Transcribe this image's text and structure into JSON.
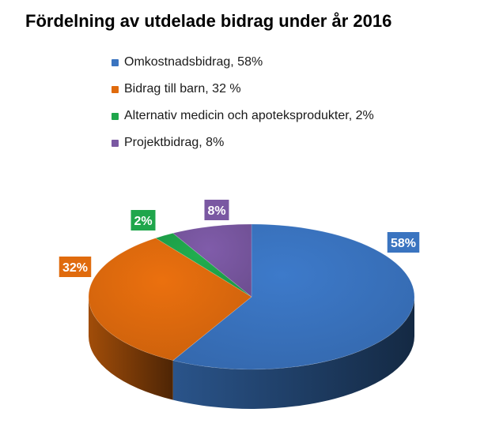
{
  "chart_data": {
    "type": "pie",
    "title": "Fördelning av utdelade bidrag under år 2016",
    "legend_position": "top",
    "series": [
      {
        "name": "Omkostnadsbidrag, 58%",
        "value": 58,
        "label": "58%",
        "color": "#3a74c0"
      },
      {
        "name": "Bidrag till barn, 32 %",
        "value": 32,
        "label": "32%",
        "color": "#e06b0d"
      },
      {
        "name": "Alternativ medicin och apoteksprodukter, 2%",
        "value": 2,
        "label": "2%",
        "color": "#1fa64b"
      },
      {
        "name": "Projektbidrag, 8%",
        "value": 8,
        "label": "8%",
        "color": "#7a58a2"
      }
    ]
  }
}
